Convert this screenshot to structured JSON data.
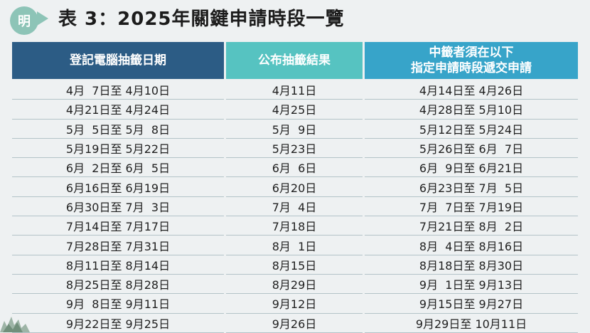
{
  "logo": {
    "char": "明"
  },
  "title": "表 3：2025年關鍵申請時段一覽",
  "table": {
    "headers": [
      "登記電腦抽籤日期",
      "公布抽籤結果",
      "中籤者須在以下\n指定申請時段遞交申請"
    ],
    "rows": [
      [
        "4月  7日至 4月10日",
        "4月11日",
        "4月14日至 4月26日"
      ],
      [
        "4月21日至 4月24日",
        "4月25日",
        "4月28日至 5月10日"
      ],
      [
        "5月  5日至 5月  8日",
        "5月  9日",
        "5月12日至 5月24日"
      ],
      [
        "5月19日至 5月22日",
        "5月23日",
        "5月26日至 6月  7日"
      ],
      [
        "6月  2日至 6月  5日",
        "6月  6日",
        "6月  9日至 6月21日"
      ],
      [
        "6月16日至 6月19日",
        "6月20日",
        "6月23日至 7月  5日"
      ],
      [
        "6月30日至 7月  3日",
        "7月  4日",
        "7月  7日至 7月19日"
      ],
      [
        "7月14日至 7月17日",
        "7月18日",
        "7月21日至 8月  2日"
      ],
      [
        "7月28日至 7月31日",
        "8月  1日",
        "8月  4日至 8月16日"
      ],
      [
        "8月11日至 8月14日",
        "8月15日",
        "8月18日至 8月30日"
      ],
      [
        "8月25日至 8月28日",
        "8月29日",
        "9月  1日至 9月13日"
      ],
      [
        "9月  8日至 9月11日",
        "9月12日",
        "9月15日至 9月27日"
      ],
      [
        "9月22日至 9月25日",
        "9月26日",
        "9月29日至 10月11日"
      ]
    ]
  }
}
